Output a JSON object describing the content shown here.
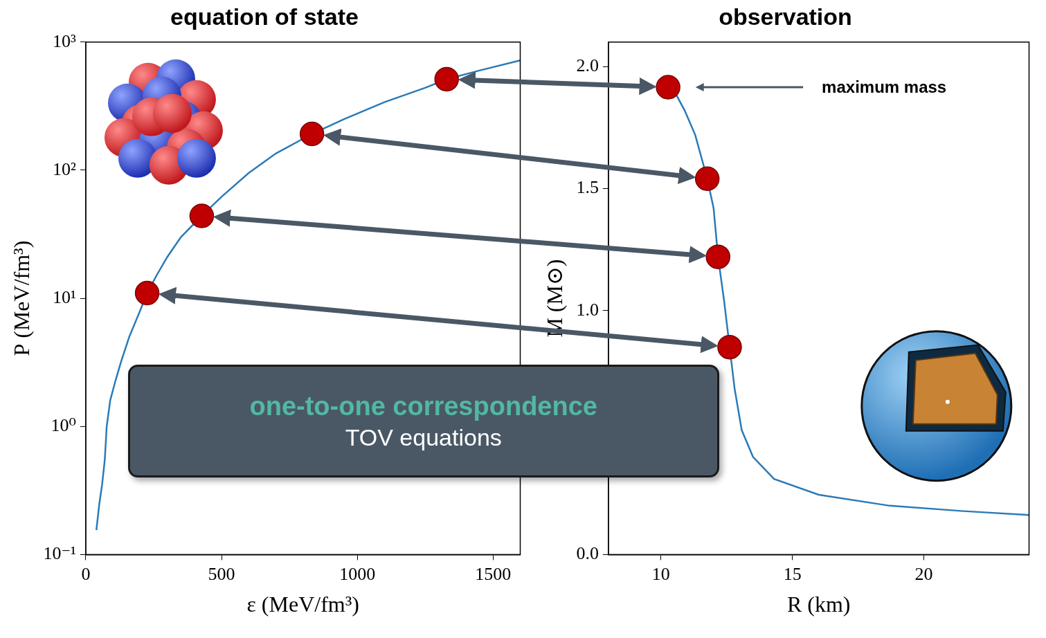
{
  "chart_data": [
    {
      "type": "line",
      "title": "equation of state",
      "x_label": "ε (MeV/fm³)",
      "y_label": "P (MeV/fm³)",
      "log": "y",
      "grid": false,
      "xlim": [
        0,
        1600
      ],
      "xticks": [
        0,
        500,
        1000,
        1500
      ],
      "ylim": [
        0.1,
        1000
      ],
      "yticks": [
        {
          "value": 0.1,
          "label": "10⁻¹"
        },
        {
          "value": 1,
          "label": "10⁰"
        },
        {
          "value": 10,
          "label": "10¹"
        },
        {
          "value": 100,
          "label": "10²"
        },
        {
          "value": 1000,
          "label": "10³"
        }
      ],
      "series": [
        {
          "color": "#2a7ab8",
          "line_style": "solid",
          "x": [
            39,
            50,
            60,
            70,
            77,
            90,
            110,
            130,
            160,
            200,
            226,
            260,
            300,
            350,
            427,
            500,
            600,
            700,
            833,
            950,
            1100,
            1250,
            1329,
            1450,
            1600
          ],
          "values": [
            0.155,
            0.25,
            0.35,
            0.55,
            1,
            1.6,
            2.3,
            3.2,
            5,
            8,
            11,
            15,
            21,
            30,
            44,
            62,
            95,
            135,
            192,
            250,
            340,
            440,
            513,
            600,
            720
          ]
        },
        {
          "type": "scatter",
          "marker": "circle",
          "color": "#c00000",
          "x": [
            226,
            427,
            833,
            1329
          ],
          "values": [
            11,
            44,
            192,
            513
          ]
        }
      ]
    },
    {
      "type": "line",
      "title": "observation",
      "x_label": "R (km)",
      "y_label": "M (M⊙)",
      "grid": false,
      "xlim": [
        8,
        24
      ],
      "xticks": [
        10,
        15,
        20
      ],
      "ylim": [
        0,
        2.1
      ],
      "yticks": [
        {
          "value": 0,
          "label": "0.0"
        },
        {
          "value": 1,
          "label": "1.0"
        },
        1.5,
        {
          "value": 2,
          "label": "2.0"
        }
      ],
      "series": [
        {
          "color": "#2a7ab8",
          "line_style": "solid",
          "x": [
            10.27,
            10.5,
            10.9,
            11.3,
            11.76,
            12.0,
            12.17,
            12.4,
            12.61,
            12.8,
            13.07,
            13.5,
            14.3,
            16,
            18.7,
            21.5,
            24
          ],
          "values": [
            1.915,
            1.9,
            1.82,
            1.72,
            1.54,
            1.42,
            1.22,
            1.04,
            0.85,
            0.68,
            0.51,
            0.4,
            0.31,
            0.245,
            0.2,
            0.178,
            0.162
          ]
        },
        {
          "type": "scatter",
          "marker": "circle",
          "color": "#c00000",
          "x": [
            12.61,
            12.17,
            11.76,
            10.27
          ],
          "values": [
            0.85,
            1.22,
            1.54,
            1.915
          ]
        }
      ],
      "annotations": [
        {
          "text": "maximum mass",
          "x": 10.27,
          "y": 1.915
        }
      ]
    }
  ],
  "box": {
    "title": "one-to-one correspondence",
    "subtitle": "TOV equations"
  }
}
